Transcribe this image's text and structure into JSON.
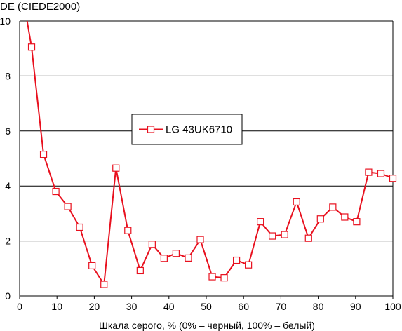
{
  "chart_data": {
    "type": "line",
    "title": "DE (CIEDE2000)",
    "xlabel": "Шкала серого, % (0% – черный, 100% – белый)",
    "ylabel": "",
    "xlim": [
      0,
      100
    ],
    "ylim": [
      0,
      10
    ],
    "x_ticks": [
      "0",
      "10",
      "20",
      "30",
      "40",
      "50",
      "60",
      "70",
      "80",
      "90",
      "100"
    ],
    "y_ticks": [
      "0",
      "2",
      "4",
      "6",
      "8",
      "10"
    ],
    "grid": "horizontal",
    "legend_position": "upper-center",
    "colors": {
      "series": "#e8101e",
      "grid": "#000000",
      "marker_fill": "#ffffff"
    },
    "series": [
      {
        "name": "LG 43UK6710",
        "x": [
          2.0,
          3.2,
          6.4,
          9.7,
          12.9,
          16.1,
          19.4,
          22.6,
          25.8,
          29.0,
          32.3,
          35.5,
          38.7,
          41.9,
          45.2,
          48.4,
          51.6,
          54.8,
          58.1,
          61.3,
          64.5,
          67.7,
          71.0,
          74.2,
          77.4,
          80.6,
          83.9,
          87.1,
          90.3,
          93.5,
          96.8,
          100.0
        ],
        "values": [
          10.0,
          9.05,
          5.15,
          3.8,
          3.25,
          2.5,
          1.1,
          0.42,
          4.65,
          2.38,
          0.92,
          1.88,
          1.37,
          1.55,
          1.38,
          2.05,
          0.7,
          0.66,
          1.3,
          1.13,
          2.7,
          2.18,
          2.23,
          3.42,
          2.1,
          2.8,
          3.23,
          2.87,
          2.7,
          4.5,
          4.45,
          4.28
        ]
      }
    ]
  }
}
